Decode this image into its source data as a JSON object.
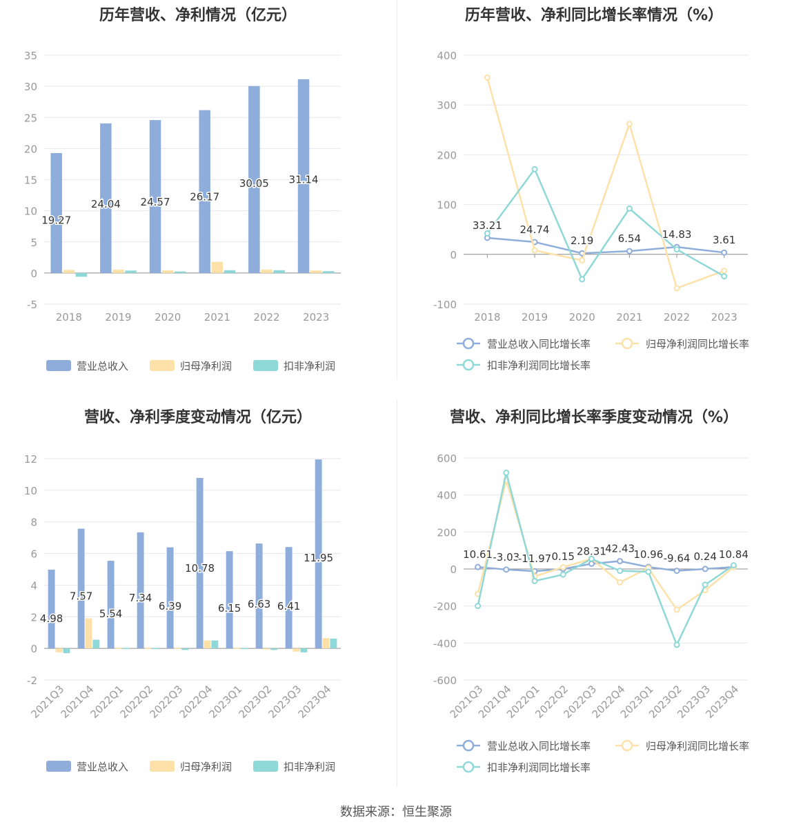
{
  "footer": {
    "source": "数据来源：恒生聚源"
  },
  "colors": {
    "revenue": "#8eadda",
    "net_profit": "#fde1a8",
    "deducted_profit": "#8fd8d8",
    "axis": "#999999",
    "grid": "#e6e6ee",
    "label": "#333333"
  },
  "chart_data": [
    {
      "type": "bar",
      "title": "历年营收、净利情况（亿元）",
      "categories": [
        "2018",
        "2019",
        "2020",
        "2021",
        "2022",
        "2023"
      ],
      "ylim": [
        -5,
        35
      ],
      "yticks": [
        -5,
        0,
        5,
        10,
        15,
        20,
        25,
        30,
        35
      ],
      "grid": true,
      "legend_position": "bottom",
      "series": [
        {
          "name": "营业总收入",
          "values": [
            19.27,
            24.04,
            24.57,
            26.17,
            30.05,
            31.14
          ],
          "labels": [
            "19.27",
            "24.04",
            "24.57",
            "26.17",
            "30.05",
            "31.14"
          ]
        },
        {
          "name": "归母净利润",
          "values": [
            0.5,
            0.55,
            0.45,
            1.8,
            0.55,
            0.4
          ]
        },
        {
          "name": "扣非净利润",
          "values": [
            -0.6,
            0.4,
            0.25,
            0.45,
            0.45,
            0.3
          ]
        }
      ]
    },
    {
      "type": "line",
      "title": "历年营收、净利同比增长率情况（%）",
      "categories": [
        "2018",
        "2019",
        "2020",
        "2021",
        "2022",
        "2023"
      ],
      "ylim": [
        -100,
        400
      ],
      "yticks": [
        -100,
        0,
        100,
        200,
        300,
        400
      ],
      "grid": true,
      "legend_position": "bottom",
      "series": [
        {
          "name": "营业总收入同比增长率",
          "values": [
            33.21,
            24.74,
            2.19,
            6.54,
            14.83,
            3.61
          ],
          "labels": [
            "33.21",
            "24.74",
            "2.19",
            "6.54",
            "14.83",
            "3.61"
          ]
        },
        {
          "name": "归母净利润同比增长率",
          "values": [
            355,
            8,
            -12,
            262,
            -68,
            -33
          ]
        },
        {
          "name": "扣非净利润同比增长率",
          "values": [
            42,
            171,
            -50,
            92,
            10,
            -44
          ]
        }
      ]
    },
    {
      "type": "bar",
      "title": "营收、净利季度变动情况（亿元）",
      "categories": [
        "2021Q3",
        "2021Q4",
        "2022Q1",
        "2022Q2",
        "2022Q3",
        "2022Q4",
        "2023Q1",
        "2023Q2",
        "2023Q3",
        "2023Q4"
      ],
      "ylim": [
        -2,
        12
      ],
      "yticks": [
        -2,
        0,
        2,
        4,
        6,
        8,
        10,
        12
      ],
      "grid": true,
      "legend_position": "bottom",
      "series": [
        {
          "name": "营业总收入",
          "values": [
            4.98,
            7.57,
            5.54,
            7.34,
            6.39,
            10.78,
            6.15,
            6.63,
            6.41,
            11.95
          ],
          "labels": [
            "4.98",
            "7.57",
            "5.54",
            "7.34",
            "6.39",
            "10.78",
            "6.15",
            "6.63",
            "6.41",
            "11.95"
          ]
        },
        {
          "name": "归母净利润",
          "values": [
            -0.25,
            1.9,
            0.05,
            0.05,
            0.05,
            0.5,
            0.05,
            -0.05,
            -0.2,
            0.65
          ]
        },
        {
          "name": "扣非净利润",
          "values": [
            -0.3,
            0.55,
            0.02,
            0.02,
            -0.1,
            0.5,
            0.02,
            -0.1,
            -0.25,
            0.62
          ]
        }
      ]
    },
    {
      "type": "line",
      "title": "营收、净利同比增长率季度变动情况（%）",
      "categories": [
        "2021Q3",
        "2021Q4",
        "2022Q1",
        "2022Q2",
        "2022Q3",
        "2022Q4",
        "2023Q1",
        "2023Q2",
        "2023Q3",
        "2023Q4"
      ],
      "ylim": [
        -600,
        600
      ],
      "yticks": [
        -600,
        -400,
        -200,
        0,
        200,
        400,
        600
      ],
      "grid": true,
      "legend_position": "bottom",
      "series": [
        {
          "name": "营业总收入同比增长率",
          "values": [
            10.61,
            -3.03,
            -11.97,
            0.15,
            28.31,
            42.43,
            10.96,
            -9.64,
            0.24,
            10.84
          ],
          "labels": [
            "10.61",
            "-3.03",
            "-11.97",
            "0.15",
            "28.31",
            "42.43",
            "10.96",
            "-9.64",
            "0.24",
            "10.84"
          ]
        },
        {
          "name": "归母净利润同比增长率",
          "values": [
            -135,
            480,
            -40,
            10,
            55,
            -72,
            5,
            -220,
            -115,
            10
          ]
        },
        {
          "name": "扣非净利润同比增长率",
          "values": [
            -200,
            520,
            -65,
            -30,
            55,
            -10,
            -15,
            -410,
            -85,
            20
          ]
        }
      ]
    }
  ]
}
